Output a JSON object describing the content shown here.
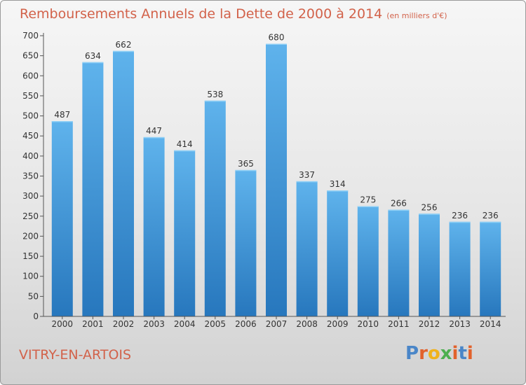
{
  "title": "Remboursements Annuels de la Dette de 2000 à 2014",
  "subtitle": "(en milliers d'€)",
  "commune": "VITRY-EN-ARTOIS",
  "brand": {
    "letters": [
      "P",
      "r",
      "o",
      "x",
      "i",
      "t",
      "i"
    ],
    "colors": [
      "#4a86c8",
      "#e2622c",
      "#f0b21c",
      "#4caf50",
      "#e2622c",
      "#4a86c8",
      "#e2622c"
    ]
  },
  "colors": {
    "title": "#d2624a",
    "bar": "#3f97dc"
  },
  "chart_data": {
    "type": "bar",
    "categories": [
      "2000",
      "2001",
      "2002",
      "2003",
      "2004",
      "2005",
      "2006",
      "2007",
      "2008",
      "2009",
      "2010",
      "2011",
      "2012",
      "2013",
      "2014"
    ],
    "values": [
      487,
      634,
      662,
      447,
      414,
      538,
      365,
      680,
      337,
      314,
      275,
      266,
      256,
      236,
      236
    ],
    "title": "Remboursements Annuels de la Dette de 2000 à 2014",
    "ylim": [
      0,
      700
    ],
    "yticks": [
      0,
      50,
      100,
      150,
      200,
      250,
      300,
      350,
      400,
      450,
      500,
      550,
      600,
      650,
      700
    ],
    "grid": false,
    "legend": "none"
  }
}
